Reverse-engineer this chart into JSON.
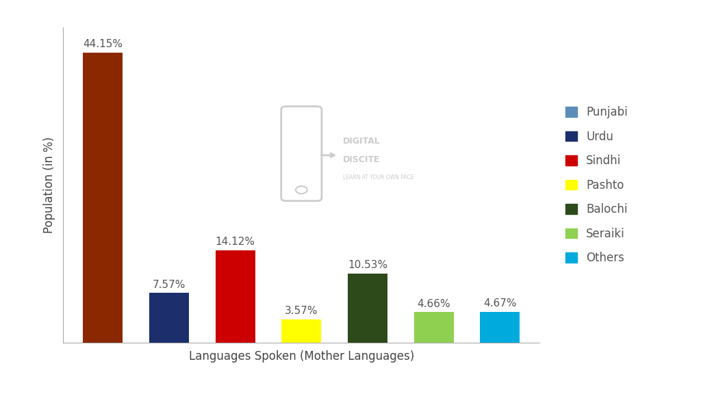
{
  "languages": [
    "Punjabi",
    "Urdu",
    "Sindhi",
    "Pashto",
    "Balochi",
    "Seraiki",
    "Others"
  ],
  "values": [
    44.15,
    7.57,
    14.12,
    3.57,
    10.53,
    4.66,
    4.67
  ],
  "labels": [
    "44.15%",
    "7.57%",
    "14.12%",
    "3.57%",
    "10.53%",
    "4.66%",
    "4.67%"
  ],
  "bar_colors": [
    "#8B2800",
    "#1C2E6B",
    "#CC0000",
    "#FFFF00",
    "#2D4A1A",
    "#8FD050",
    "#00AADD"
  ],
  "xlabel": "Languages Spoken (Mother Languages)",
  "ylabel": "Population (in %)",
  "ylim": [
    0,
    48
  ],
  "background_color": "#ffffff",
  "bar_width": 0.6,
  "legend_labels": [
    "Punjabi",
    "Urdu",
    "Sindhi",
    "Pashto",
    "Balochi",
    "Seraiki",
    "Others"
  ],
  "legend_colors": [
    "#5B8DB8",
    "#1C2E6B",
    "#CC0000",
    "#FFFF00",
    "#2D4A1A",
    "#8FD050",
    "#00AADD"
  ],
  "label_fontsize": 11,
  "axis_label_fontsize": 12,
  "legend_fontsize": 12,
  "watermark_color": "#cccccc"
}
